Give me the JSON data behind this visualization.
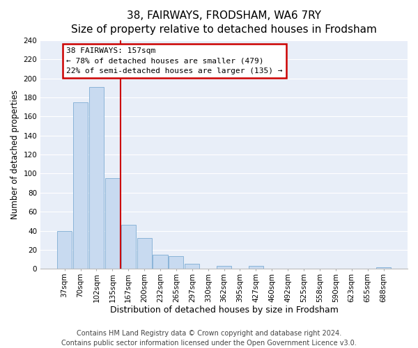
{
  "title": "38, FAIRWAYS, FRODSHAM, WA6 7RY",
  "subtitle": "Size of property relative to detached houses in Frodsham",
  "xlabel": "Distribution of detached houses by size in Frodsham",
  "ylabel": "Number of detached properties",
  "bar_labels": [
    "37sqm",
    "70sqm",
    "102sqm",
    "135sqm",
    "167sqm",
    "200sqm",
    "232sqm",
    "265sqm",
    "297sqm",
    "330sqm",
    "362sqm",
    "395sqm",
    "427sqm",
    "460sqm",
    "492sqm",
    "525sqm",
    "558sqm",
    "590sqm",
    "623sqm",
    "655sqm",
    "688sqm"
  ],
  "bar_values": [
    40,
    175,
    191,
    95,
    46,
    32,
    15,
    13,
    5,
    0,
    3,
    0,
    3,
    0,
    0,
    0,
    0,
    0,
    0,
    0,
    2
  ],
  "bar_color": "#c8daf0",
  "bar_edge_color": "#8ab4d8",
  "vline_color": "#cc0000",
  "vline_x_index": 4,
  "ylim": [
    0,
    240
  ],
  "yticks": [
    0,
    20,
    40,
    60,
    80,
    100,
    120,
    140,
    160,
    180,
    200,
    220,
    240
  ],
  "annotation_title": "38 FAIRWAYS: 157sqm",
  "annotation_line1": "← 78% of detached houses are smaller (479)",
  "annotation_line2": "22% of semi-detached houses are larger (135) →",
  "annotation_box_facecolor": "#ffffff",
  "annotation_box_edgecolor": "#cc0000",
  "footer1": "Contains HM Land Registry data © Crown copyright and database right 2024.",
  "footer2": "Contains public sector information licensed under the Open Government Licence v3.0.",
  "fig_bgcolor": "#ffffff",
  "axes_bgcolor": "#e8eef8",
  "grid_color": "#ffffff",
  "title_fontsize": 11,
  "subtitle_fontsize": 10,
  "xlabel_fontsize": 9,
  "ylabel_fontsize": 8.5,
  "tick_fontsize": 7.5,
  "footer_fontsize": 7
}
